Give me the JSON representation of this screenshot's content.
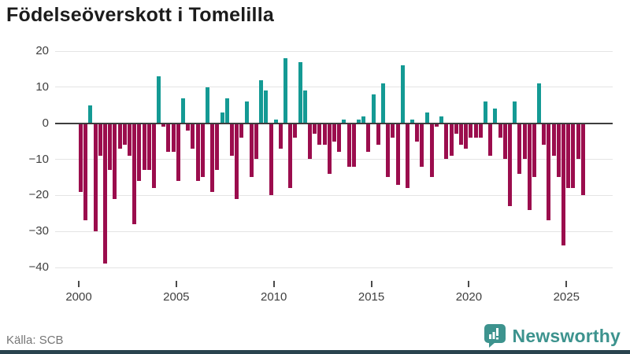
{
  "title": "Födelseöverskott i Tomelilla",
  "source": "Källa: SCB",
  "brand": {
    "name": "Newsworthy",
    "color": "#3d938e"
  },
  "colors": {
    "positive_bar": "#149a94",
    "negative_bar": "#9b0d4d",
    "gridline": "#e4e4e4",
    "zero_axis": "#3d3d3d",
    "bottom_accent": "#29434e"
  },
  "chart_data": {
    "type": "bar",
    "title": "Födelseöverskott i Tomelilla",
    "xlabel": "",
    "ylabel": "",
    "period": "quarterly",
    "start_year": 2000,
    "ylim": [
      -40,
      20
    ],
    "grid": true,
    "y_ticks": [
      20,
      10,
      0,
      -10,
      -20,
      -30,
      -40
    ],
    "y_tick_labels": [
      "20",
      "10",
      "0",
      "−10",
      "−20",
      "−30",
      "−40"
    ],
    "x_tick_years": [
      2000,
      2005,
      2010,
      2015,
      2020,
      2025
    ],
    "x_tick_labels": [
      "2000",
      "2005",
      "2010",
      "2015",
      "2020",
      "2025"
    ],
    "series": [
      {
        "name": "Födelseöverskott",
        "values": [
          -19,
          -27,
          5,
          -30,
          -9,
          -39,
          -13,
          -21,
          -7,
          -6,
          -9,
          -28,
          -16,
          -13,
          -13,
          -18,
          13,
          -1,
          -8,
          -8,
          -16,
          7,
          -2,
          -7,
          -16,
          -15,
          10,
          -19,
          -13,
          3,
          7,
          -9,
          -21,
          -4,
          6,
          -15,
          -10,
          12,
          9,
          -20,
          1,
          -7,
          18,
          -18,
          -4,
          17,
          9,
          -10,
          -3,
          -6,
          -6,
          -14,
          -5,
          -8,
          1,
          -12,
          -12,
          1,
          2,
          -8,
          8,
          -6,
          11,
          -15,
          -4,
          -17,
          16,
          -18,
          1,
          -5,
          -12,
          3,
          -15,
          -1,
          2,
          -10,
          -9,
          -3,
          -6,
          -7,
          -4,
          -4,
          -4,
          6,
          -9,
          4,
          -4,
          -10,
          -23,
          6,
          -14,
          -10,
          -24,
          -15,
          11,
          -6,
          -27,
          -9,
          -15,
          -34,
          -18,
          -18,
          -10,
          -20
        ]
      }
    ]
  }
}
